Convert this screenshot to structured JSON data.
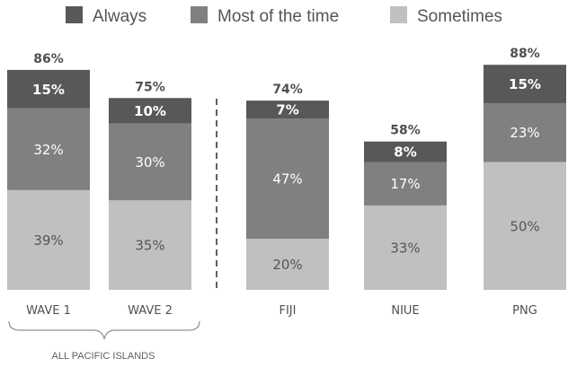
{
  "chart_data": {
    "type": "bar",
    "stacked": true,
    "categories": [
      "WAVE 1",
      "WAVE 2",
      "FIJI",
      "NIUE",
      "PNG"
    ],
    "totals": [
      "86%",
      "75%",
      "74%",
      "58%",
      "88%"
    ],
    "total_values": [
      86,
      75,
      74,
      58,
      88
    ],
    "series": [
      {
        "name": "Sometimes",
        "values": [
          39,
          35,
          20,
          33,
          50
        ],
        "labels": [
          "39%",
          "35%",
          "20%",
          "33%",
          "50%"
        ],
        "color": "#c0c0c0"
      },
      {
        "name": "Most of the time",
        "values": [
          32,
          30,
          47,
          17,
          23
        ],
        "labels": [
          "32%",
          "30%",
          "47%",
          "17%",
          "23%"
        ],
        "color": "#808080"
      },
      {
        "name": "Always",
        "values": [
          15,
          10,
          7,
          8,
          15
        ],
        "labels": [
          "15%",
          "10%",
          "7%",
          "8%",
          "15%"
        ],
        "color": "#585858"
      }
    ],
    "legend": [
      "Always",
      "Most of the time",
      "Sometimes"
    ],
    "legend_colors": [
      "#585858",
      "#808080",
      "#c0c0c0"
    ],
    "group_label": "ALL PACIFIC ISLANDS",
    "group_members": [
      "WAVE 1",
      "WAVE 2"
    ],
    "legend_position": "top",
    "grid": false,
    "separator": "dashed line between WAVE 2 and FIJI"
  }
}
